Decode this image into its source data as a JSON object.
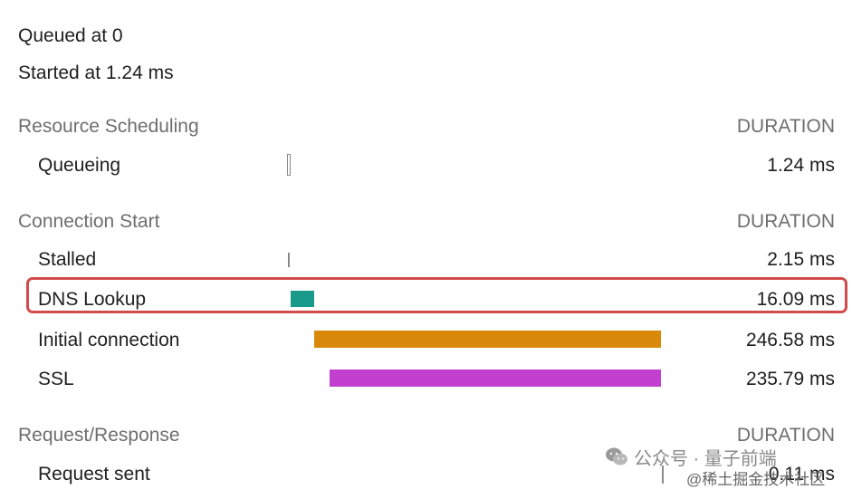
{
  "header": {
    "queued": "Queued at 0",
    "started": "Started at 1.24 ms"
  },
  "sections": {
    "resource_scheduling": {
      "title": "Resource Scheduling",
      "duration_header": "DURATION",
      "rows": [
        {
          "label": "Queueing",
          "duration": "1.24 ms"
        }
      ]
    },
    "connection_start": {
      "title": "Connection Start",
      "duration_header": "DURATION",
      "rows": [
        {
          "label": "Stalled",
          "duration": "2.15 ms"
        },
        {
          "label": "DNS Lookup",
          "duration": "16.09 ms"
        },
        {
          "label": "Initial connection",
          "duration": "246.58 ms"
        },
        {
          "label": "SSL",
          "duration": "235.79 ms"
        }
      ]
    },
    "request_response": {
      "title": "Request/Response",
      "duration_header": "DURATION",
      "rows": [
        {
          "label": "Request sent",
          "duration": "0.11 ms"
        }
      ]
    }
  },
  "colors": {
    "dns": "#1a9a8a",
    "initial_connection": "#d9890a",
    "ssl": "#c23fd0",
    "highlight": "#d24a4a"
  },
  "watermark": {
    "line1": "公众号 · 量子前端",
    "line2": "@稀土掘金技术社区"
  }
}
